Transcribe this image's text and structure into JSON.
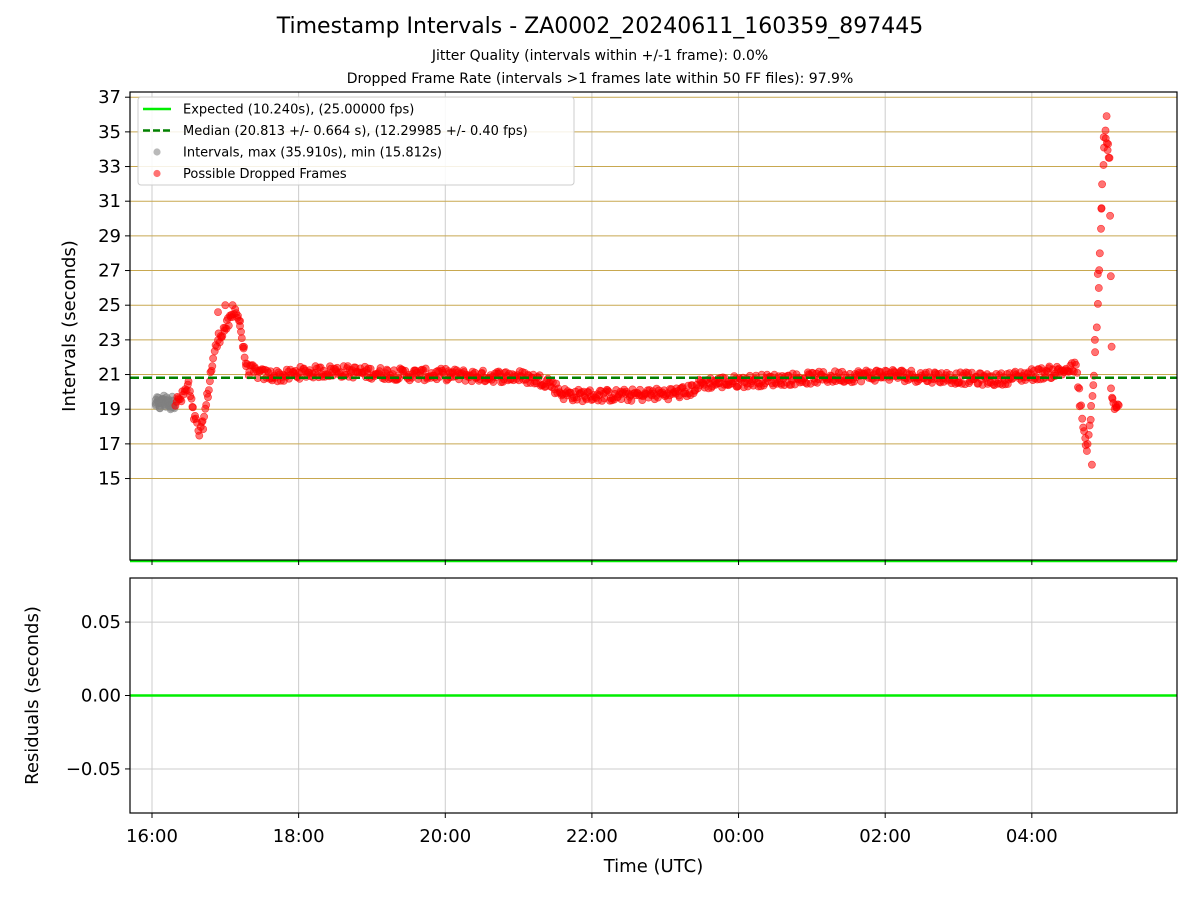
{
  "title": "Timestamp Intervals - ZA0002_20240611_160359_897445",
  "subtitle1": "Jitter Quality (intervals within +/-1 frame): 0.0%",
  "subtitle2": "Dropped Frame Rate (intervals >1 frames late within 50 FF files): 97.9%",
  "colors": {
    "expected": "#00ee00",
    "median": "#008000",
    "dropped": "#ff0000",
    "normal": "#808080",
    "hgrid": "#c8a850",
    "vgrid": "#cccccc"
  },
  "chart_data": [
    {
      "type": "scatter",
      "ylabel": "Intervals (seconds)",
      "ylim": [
        10.3,
        37.3
      ],
      "xlim_hours": [
        15.7,
        29.98
      ],
      "x_unit": "hours UTC since 2024-06-11 00:00",
      "yticks": [
        "15",
        "17",
        "19",
        "21",
        "23",
        "25",
        "27",
        "29",
        "31",
        "33",
        "35",
        "37"
      ],
      "ytick_values": [
        15,
        17,
        19,
        21,
        23,
        25,
        27,
        29,
        31,
        33,
        35,
        37
      ],
      "xtick_values": [
        16,
        18,
        20,
        22,
        24,
        26,
        28
      ],
      "expected": 10.24,
      "median": 20.813,
      "legend_position": "top-left",
      "legend": [
        {
          "label": "Expected (10.240s), (25.00000 fps)",
          "kind": "line"
        },
        {
          "label": "Median (20.813 +/- 0.664 s), (12.29985 +/- 0.40 fps)",
          "kind": "dash"
        },
        {
          "label": "Intervals, max (35.910s), min (15.812s)",
          "kind": "dot-gray"
        },
        {
          "label": "Possible Dropped Frames",
          "kind": "dot-red"
        }
      ],
      "normal_points": {
        "x": [
          16.05,
          16.08,
          16.1,
          16.12,
          16.15,
          16.18,
          16.2,
          16.22,
          16.25,
          16.28,
          16.3
        ],
        "y": [
          19.3,
          19.5,
          19.2,
          19.4,
          19.6,
          19.3,
          19.5,
          19.4,
          19.2,
          19.5,
          19.3
        ]
      },
      "dropped_series": {
        "x": [
          16.32,
          16.4,
          16.5,
          16.55,
          16.6,
          16.65,
          16.7,
          16.75,
          16.8,
          16.85,
          16.9,
          16.95,
          17.0,
          17.05,
          17.1,
          17.15,
          17.2,
          17.25,
          17.3,
          17.5,
          17.8,
          18.0,
          18.5,
          19.0,
          19.5,
          20.0,
          20.5,
          21.0,
          21.4,
          21.6,
          21.8,
          22.0,
          22.5,
          23.0,
          23.3,
          23.5,
          24.0,
          24.5,
          25.0,
          25.5,
          26.0,
          26.5,
          27.0,
          27.5,
          28.0,
          28.4,
          28.6,
          28.7,
          28.75,
          28.8,
          28.85,
          28.9,
          28.93,
          28.96,
          29.0,
          29.05,
          29.1,
          29.2
        ],
        "y": [
          19.4,
          19.6,
          20.4,
          19.0,
          18.2,
          17.6,
          18.2,
          19.6,
          21.0,
          22.2,
          23.0,
          23.4,
          23.7,
          24.0,
          24.3,
          24.8,
          24.0,
          22.3,
          21.3,
          21.0,
          20.9,
          21.1,
          21.2,
          21.1,
          21.0,
          21.0,
          20.9,
          20.9,
          20.6,
          19.9,
          19.8,
          19.8,
          19.8,
          19.9,
          20.0,
          20.5,
          20.6,
          20.7,
          20.8,
          20.9,
          21.0,
          20.9,
          20.8,
          20.7,
          21.0,
          21.2,
          21.4,
          18.0,
          16.5,
          18.5,
          21.0,
          25.0,
          28.0,
          32.0,
          35.0,
          33.5,
          19.4,
          19.2
        ]
      },
      "dropped_extra": {
        "x": [
          16.9,
          17.0,
          17.1,
          17.2,
          17.25,
          28.82,
          28.86,
          28.9,
          28.95,
          28.98,
          29.02,
          29.04,
          29.06,
          29.08,
          29.1,
          29.15
        ],
        "y": [
          24.6,
          25.0,
          25.0,
          23.8,
          22.5,
          15.8,
          23.0,
          26.8,
          30.6,
          34.7,
          35.91,
          34.3,
          33.5,
          20.2,
          19.6,
          19.1
        ]
      }
    },
    {
      "type": "line",
      "xlabel": "Time (UTC)",
      "ylabel": "Residuals (seconds)",
      "ylim": [
        -0.08,
        0.08
      ],
      "yticks": [
        "0.05",
        "0.00",
        "−0.05"
      ],
      "ytick_values": [
        0.05,
        0.0,
        -0.05
      ],
      "xticks": [
        "16:00",
        "18:00",
        "20:00",
        "22:00",
        "00:00",
        "02:00",
        "04:00"
      ],
      "xtick_values": [
        16,
        18,
        20,
        22,
        24,
        26,
        28
      ],
      "residual_line": 0.0
    }
  ]
}
